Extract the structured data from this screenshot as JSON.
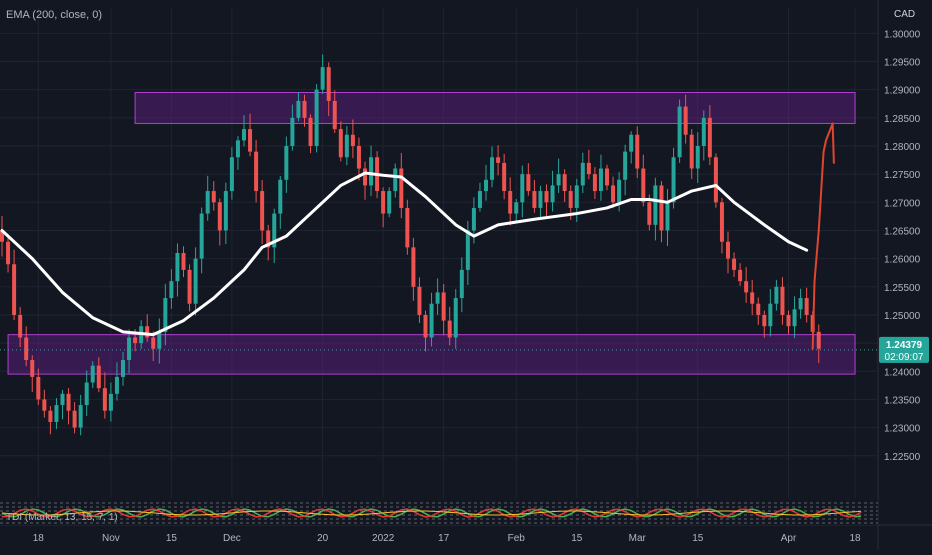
{
  "indicator_label": "EMA (200, close, 0)",
  "currency": "CAD",
  "sub_indicator_label": "TDI (Market, 13, 15, 7, 1)",
  "last_price": "1.24379",
  "countdown": "02:09:07",
  "colors": {
    "background": "#131722",
    "grid": "#1f2430",
    "up_candle": "#26a69a",
    "down_candle": "#ef5350",
    "ema": "#ffffff",
    "zone_fill": "#7b1fa2",
    "zone_border": "#b040d0",
    "annotation": "#e0452e",
    "price_badge": "#26a69a",
    "axis_text": "#b2b5be"
  },
  "chart_data": {
    "type": "candlestick",
    "title": "",
    "xlabel": "",
    "ylabel": "",
    "ylim": [
      1.2175,
      1.3045
    ],
    "y_ticks": [
      "1.30000",
      "1.29500",
      "1.29000",
      "1.28500",
      "1.28000",
      "1.27500",
      "1.27000",
      "1.26500",
      "1.26000",
      "1.25500",
      "1.25000",
      "1.24500",
      "1.24000",
      "1.23500",
      "1.23000",
      "1.22500"
    ],
    "x_ticks": [
      {
        "label": "18",
        "bar": 6
      },
      {
        "label": "Nov",
        "bar": 18
      },
      {
        "label": "15",
        "bar": 28
      },
      {
        "label": "Dec",
        "bar": 38
      },
      {
        "label": "20",
        "bar": 53
      },
      {
        "label": "2022",
        "bar": 63
      },
      {
        "label": "17",
        "bar": 73
      },
      {
        "label": "Feb",
        "bar": 85
      },
      {
        "label": "15",
        "bar": 95
      },
      {
        "label": "Mar",
        "bar": 105
      },
      {
        "label": "15",
        "bar": 115
      },
      {
        "label": "Apr",
        "bar": 130
      },
      {
        "label": "18",
        "bar": 141
      }
    ],
    "bar_count": 143,
    "close": [
      1.263,
      1.259,
      1.25,
      1.246,
      1.242,
      1.239,
      1.235,
      1.233,
      1.231,
      1.234,
      1.236,
      1.233,
      1.23,
      1.234,
      1.238,
      1.241,
      1.237,
      1.233,
      1.236,
      1.239,
      1.242,
      1.246,
      1.245,
      1.248,
      1.246,
      1.244,
      1.247,
      1.253,
      1.256,
      1.261,
      1.258,
      1.252,
      1.26,
      1.268,
      1.272,
      1.27,
      1.265,
      1.272,
      1.278,
      1.281,
      1.283,
      1.279,
      1.272,
      1.265,
      1.262,
      1.268,
      1.274,
      1.28,
      1.285,
      1.288,
      1.285,
      1.28,
      1.29,
      1.294,
      1.288,
      1.283,
      1.278,
      1.282,
      1.28,
      1.276,
      1.273,
      1.278,
      1.272,
      1.268,
      1.272,
      1.276,
      1.269,
      1.262,
      1.255,
      1.25,
      1.246,
      1.252,
      1.254,
      1.249,
      1.246,
      1.253,
      1.258,
      1.265,
      1.269,
      1.272,
      1.274,
      1.278,
      1.277,
      1.272,
      1.268,
      1.27,
      1.275,
      1.272,
      1.269,
      1.272,
      1.27,
      1.273,
      1.275,
      1.272,
      1.269,
      1.273,
      1.277,
      1.275,
      1.272,
      1.276,
      1.273,
      1.27,
      1.274,
      1.279,
      1.282,
      1.276,
      1.27,
      1.266,
      1.273,
      1.265,
      1.27,
      1.278,
      1.287,
      1.282,
      1.276,
      1.28,
      1.285,
      1.278,
      1.27,
      1.263,
      1.26,
      1.258,
      1.256,
      1.254,
      1.252,
      1.25,
      1.248,
      1.252,
      1.255,
      1.25,
      1.248,
      1.251,
      1.253,
      1.25,
      1.247,
      1.244
    ],
    "ema": [
      {
        "bar": 0,
        "value": 1.265
      },
      {
        "bar": 5,
        "value": 1.26
      },
      {
        "bar": 10,
        "value": 1.254
      },
      {
        "bar": 15,
        "value": 1.2495
      },
      {
        "bar": 20,
        "value": 1.247
      },
      {
        "bar": 25,
        "value": 1.2465
      },
      {
        "bar": 30,
        "value": 1.249
      },
      {
        "bar": 35,
        "value": 1.253
      },
      {
        "bar": 40,
        "value": 1.258
      },
      {
        "bar": 43,
        "value": 1.262
      },
      {
        "bar": 47,
        "value": 1.264
      },
      {
        "bar": 52,
        "value": 1.269
      },
      {
        "bar": 56,
        "value": 1.273
      },
      {
        "bar": 60,
        "value": 1.2752
      },
      {
        "bar": 63,
        "value": 1.2748
      },
      {
        "bar": 66,
        "value": 1.2745
      },
      {
        "bar": 70,
        "value": 1.271
      },
      {
        "bar": 75,
        "value": 1.266
      },
      {
        "bar": 78,
        "value": 1.264
      },
      {
        "bar": 82,
        "value": 1.266
      },
      {
        "bar": 88,
        "value": 1.267
      },
      {
        "bar": 95,
        "value": 1.268
      },
      {
        "bar": 100,
        "value": 1.269
      },
      {
        "bar": 104,
        "value": 1.2705
      },
      {
        "bar": 107,
        "value": 1.2705
      },
      {
        "bar": 110,
        "value": 1.27
      },
      {
        "bar": 114,
        "value": 1.272
      },
      {
        "bar": 118,
        "value": 1.273
      },
      {
        "bar": 121,
        "value": 1.27
      },
      {
        "bar": 126,
        "value": 1.266
      },
      {
        "bar": 130,
        "value": 1.263
      },
      {
        "bar": 133,
        "value": 1.2615
      }
    ],
    "zones": [
      {
        "name": "resistance",
        "x0_bar": 22,
        "x1_bar": 141,
        "y_low": 1.284,
        "y_high": 1.2895
      },
      {
        "name": "support",
        "x0_bar": 1,
        "x1_bar": 141,
        "y_low": 1.2395,
        "y_high": 1.2465
      }
    ],
    "annotation_arrow": [
      {
        "bar": 134,
        "value": 1.244
      },
      {
        "bar": 134.3,
        "value": 1.256
      },
      {
        "bar": 135,
        "value": 1.265
      },
      {
        "bar": 135.8,
        "value": 1.279
      },
      {
        "bar": 136.2,
        "value": 1.281
      },
      {
        "bar": 137.3,
        "value": 1.284
      },
      {
        "bar": 137.5,
        "value": 1.277
      }
    ],
    "current_price": 1.24379
  }
}
